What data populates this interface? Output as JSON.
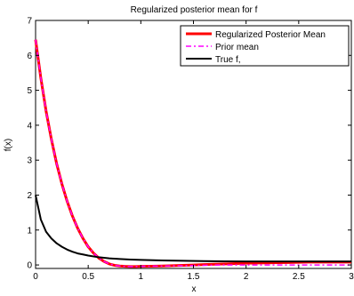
{
  "chart_data": {
    "type": "line",
    "title": "Regularized posterior mean for f",
    "xlabel": "x",
    "ylabel": "f(x)",
    "xlim": [
      0,
      3
    ],
    "ylim": [
      -0.1,
      7
    ],
    "xticks": [
      "0",
      "0.5",
      "1",
      "1.5",
      "2",
      "2.5",
      "3"
    ],
    "xtick_values": [
      0,
      0.5,
      1,
      1.5,
      2,
      2.5,
      3
    ],
    "yticks": [
      "0",
      "1",
      "2",
      "3",
      "4",
      "5",
      "6",
      "7"
    ],
    "ytick_values": [
      0,
      1,
      2,
      3,
      4,
      5,
      6,
      7
    ],
    "grid": false,
    "legend_position": "top-right",
    "series": [
      {
        "name": "Regularized Posterior Mean",
        "color": "#ff0000",
        "style": "solid",
        "x": [
          0,
          0.05,
          0.1,
          0.15,
          0.2,
          0.25,
          0.3,
          0.35,
          0.4,
          0.45,
          0.5,
          0.55,
          0.6,
          0.65,
          0.7,
          0.75,
          0.8,
          0.85,
          0.9,
          0.95,
          1.0,
          1.1,
          1.2,
          1.3,
          1.4,
          1.5,
          1.6,
          1.7,
          1.8,
          1.9,
          2.0,
          2.1,
          2.2,
          2.3,
          2.4,
          2.5,
          2.6,
          2.7,
          2.8,
          2.9,
          3.0
        ],
        "y": [
          6.45,
          5.35,
          4.4,
          3.6,
          2.9,
          2.32,
          1.82,
          1.4,
          1.05,
          0.76,
          0.52,
          0.34,
          0.2,
          0.1,
          0.03,
          -0.01,
          -0.03,
          -0.04,
          -0.045,
          -0.045,
          -0.04,
          -0.035,
          -0.03,
          -0.02,
          -0.01,
          0.0,
          0.01,
          0.02,
          0.03,
          0.04,
          0.05,
          0.055,
          0.06,
          0.065,
          0.07,
          0.075,
          0.08,
          0.08,
          0.08,
          0.08,
          0.08
        ]
      },
      {
        "name": "Prior mean",
        "color": "#ff00ff",
        "style": "dashdot",
        "x": [
          0,
          0.05,
          0.1,
          0.15,
          0.2,
          0.25,
          0.3,
          0.35,
          0.4,
          0.45,
          0.5,
          0.55,
          0.6,
          0.65,
          0.7,
          0.75,
          0.8,
          0.85,
          0.9,
          0.95,
          1.0,
          1.1,
          1.2,
          1.3,
          1.4,
          1.5,
          1.6,
          1.7,
          1.8,
          1.9,
          2.0,
          2.1,
          2.2,
          2.3,
          2.4,
          2.5,
          2.6,
          2.7,
          2.8,
          2.9,
          3.0
        ],
        "y": [
          6.45,
          5.35,
          4.4,
          3.6,
          2.9,
          2.32,
          1.82,
          1.4,
          1.05,
          0.76,
          0.52,
          0.34,
          0.2,
          0.1,
          0.03,
          -0.01,
          -0.03,
          -0.04,
          -0.045,
          -0.045,
          -0.04,
          -0.035,
          -0.03,
          -0.025,
          -0.02,
          -0.015,
          -0.01,
          -0.005,
          0.0,
          0.0,
          0.0,
          0.0,
          0.0,
          0.0,
          0.0,
          0.0,
          0.0,
          0.0,
          0.0,
          0.0,
          0.0
        ]
      },
      {
        "name": "True f,",
        "color": "#000000",
        "style": "solid",
        "x": [
          0,
          0.05,
          0.1,
          0.15,
          0.2,
          0.25,
          0.3,
          0.35,
          0.4,
          0.45,
          0.5,
          0.6,
          0.7,
          0.8,
          0.9,
          1.0,
          1.2,
          1.4,
          1.6,
          1.8,
          2.0,
          2.2,
          2.4,
          2.6,
          2.8,
          3.0
        ],
        "y": [
          2.0,
          1.3,
          0.95,
          0.76,
          0.62,
          0.52,
          0.44,
          0.38,
          0.33,
          0.3,
          0.27,
          0.22,
          0.19,
          0.17,
          0.155,
          0.145,
          0.13,
          0.12,
          0.11,
          0.105,
          0.1,
          0.1,
          0.1,
          0.1,
          0.1,
          0.1
        ]
      }
    ]
  }
}
